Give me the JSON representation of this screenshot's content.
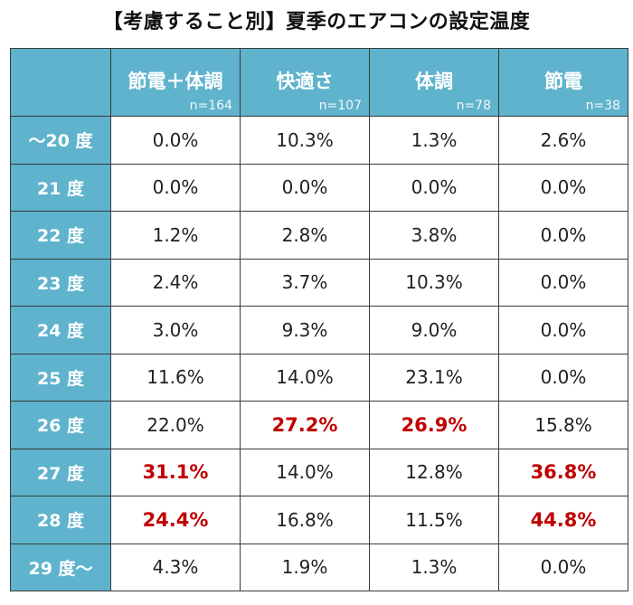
{
  "chart_data": {
    "type": "table",
    "title": "【考慮すること別】夏季のエアコンの設定温度",
    "columns": [
      {
        "label": "節電＋体調",
        "n": "n=164"
      },
      {
        "label": "快適さ",
        "n": "n=107"
      },
      {
        "label": "体調",
        "n": "n=78"
      },
      {
        "label": "節電",
        "n": "n=38"
      }
    ],
    "rows": [
      {
        "label": "～20 度",
        "values": [
          "0.0%",
          "10.3%",
          "1.3%",
          "2.6%"
        ],
        "highlight": [
          false,
          false,
          false,
          false
        ]
      },
      {
        "label": "21 度",
        "values": [
          "0.0%",
          "0.0%",
          "0.0%",
          "0.0%"
        ],
        "highlight": [
          false,
          false,
          false,
          false
        ]
      },
      {
        "label": "22 度",
        "values": [
          "1.2%",
          "2.8%",
          "3.8%",
          "0.0%"
        ],
        "highlight": [
          false,
          false,
          false,
          false
        ]
      },
      {
        "label": "23 度",
        "values": [
          "2.4%",
          "3.7%",
          "10.3%",
          "0.0%"
        ],
        "highlight": [
          false,
          false,
          false,
          false
        ]
      },
      {
        "label": "24 度",
        "values": [
          "3.0%",
          "9.3%",
          "9.0%",
          "0.0%"
        ],
        "highlight": [
          false,
          false,
          false,
          false
        ]
      },
      {
        "label": "25 度",
        "values": [
          "11.6%",
          "14.0%",
          "23.1%",
          "0.0%"
        ],
        "highlight": [
          false,
          false,
          false,
          false
        ]
      },
      {
        "label": "26 度",
        "values": [
          "22.0%",
          "27.2%",
          "26.9%",
          "15.8%"
        ],
        "highlight": [
          false,
          true,
          true,
          false
        ]
      },
      {
        "label": "27 度",
        "values": [
          "31.1%",
          "14.0%",
          "12.8%",
          "36.8%"
        ],
        "highlight": [
          true,
          false,
          false,
          true
        ]
      },
      {
        "label": "28 度",
        "values": [
          "24.4%",
          "16.8%",
          "11.5%",
          "44.8%"
        ],
        "highlight": [
          true,
          false,
          false,
          true
        ]
      },
      {
        "label": "29 度～",
        "values": [
          "4.3%",
          "1.9%",
          "1.3%",
          "0.0%"
        ],
        "highlight": [
          false,
          false,
          false,
          false
        ]
      }
    ],
    "colors": {
      "header": "#5fb3cc",
      "highlight": "#c00000"
    }
  }
}
